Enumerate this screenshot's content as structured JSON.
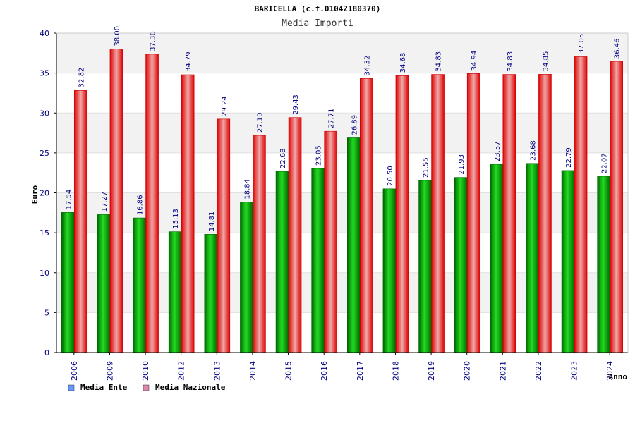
{
  "chart_data": {
    "type": "bar",
    "title": "BARICELLA (c.f.01042180370)",
    "subtitle": "Media Importi",
    "ylabel": "Euro",
    "xlabel": "Anno",
    "ylim": [
      0,
      40
    ],
    "yticks": [
      0,
      5,
      10,
      15,
      20,
      25,
      30,
      35,
      40
    ],
    "grid": true,
    "legend_position": "bottom-left",
    "categories": [
      "2006",
      "2009",
      "2010",
      "2012",
      "2013",
      "2014",
      "2015",
      "2016",
      "2017",
      "2018",
      "2019",
      "2020",
      "2021",
      "2022",
      "2023",
      "2024"
    ],
    "series": [
      {
        "name": "Media Ente",
        "color": "#00aa00",
        "legend_color": "#6699ff",
        "values": [
          17.54,
          17.27,
          16.86,
          15.13,
          14.81,
          18.84,
          22.68,
          23.05,
          26.89,
          20.5,
          21.55,
          21.93,
          23.57,
          23.68,
          22.79,
          22.07
        ],
        "labels": [
          "17.54",
          "17.27",
          "16.86",
          "15.13",
          "14.81",
          "18.84",
          "22.68",
          "23.05",
          "26.89",
          "20.50",
          "21.55",
          "21.93",
          "23.57",
          "23.68",
          "22.79",
          "22.07"
        ]
      },
      {
        "name": "Media Nazionale",
        "color": "#ee0000",
        "legend_color": "#dd88aa",
        "values": [
          32.82,
          38.0,
          37.36,
          34.79,
          29.24,
          27.19,
          29.43,
          27.71,
          34.32,
          34.68,
          34.83,
          34.94,
          34.83,
          34.85,
          37.05,
          36.46
        ],
        "labels": [
          "32.82",
          "38.00",
          "37.36",
          "34.79",
          "29.24",
          "27.19",
          "29.43",
          "27.71",
          "34.32",
          "34.68",
          "34.83",
          "34.94",
          "34.83",
          "34.85",
          "37.05",
          "36.46"
        ]
      }
    ]
  }
}
